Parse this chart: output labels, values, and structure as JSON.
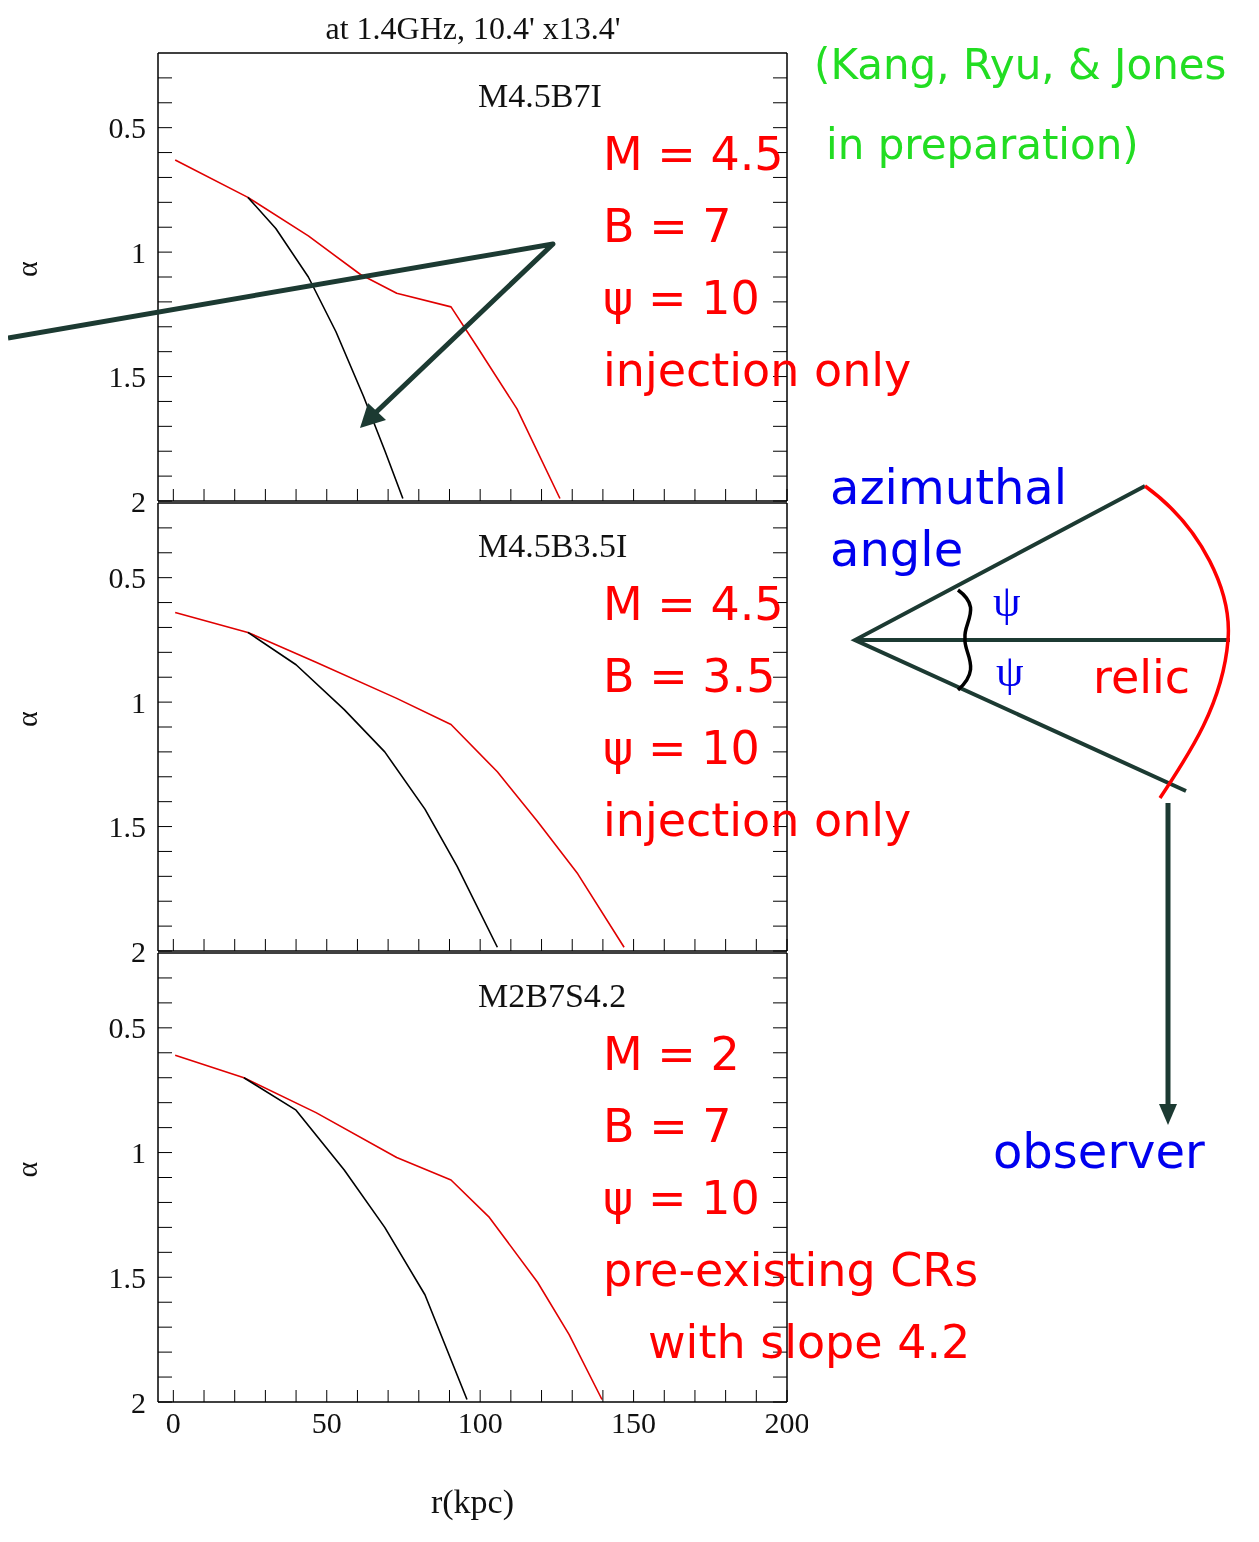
{
  "chart_data": [
    {
      "type": "line",
      "title": "at 1.4GHz, 10.4' x13.4'",
      "ylabel": "α",
      "xlim": [
        -5,
        200
      ],
      "ylim": [
        2,
        0.2
      ],
      "tick_labels": "y",
      "xticks": [
        0,
        {
          "value": 10,
          "label": null
        },
        {
          "value": 20,
          "label": null
        },
        {
          "value": 30,
          "label": null
        },
        {
          "value": 40,
          "label": null
        },
        50,
        {
          "value": 60,
          "label": null
        },
        {
          "value": 70,
          "label": null
        },
        {
          "value": 80,
          "label": null
        },
        {
          "value": 90,
          "label": null
        },
        100,
        {
          "value": 110,
          "label": null
        },
        {
          "value": 120,
          "label": null
        },
        {
          "value": 130,
          "label": null
        },
        {
          "value": 140,
          "label": null
        },
        150,
        {
          "value": 160,
          "label": null
        },
        {
          "value": 170,
          "label": null
        },
        {
          "value": 180,
          "label": null
        },
        {
          "value": 190,
          "label": null
        },
        200
      ],
      "yticks": [
        {
          "value": 0.3,
          "label": null
        },
        {
          "value": 0.4,
          "label": null
        },
        0.5,
        {
          "value": 0.6,
          "label": null
        },
        {
          "value": 0.7,
          "label": null
        },
        {
          "value": 0.8,
          "label": null
        },
        {
          "value": 0.9,
          "label": null
        },
        1,
        {
          "value": 1.1,
          "label": null
        },
        {
          "value": 1.2,
          "label": null
        },
        {
          "value": 1.3,
          "label": null
        },
        {
          "value": 1.4,
          "label": null
        },
        1.5,
        {
          "value": 1.6,
          "label": null
        },
        {
          "value": 1.7,
          "label": null
        },
        {
          "value": 1.8,
          "label": null
        },
        {
          "value": 1.9,
          "label": null
        },
        2
      ],
      "annotations": [
        "M4.5B7I",
        "M = 4.5",
        "B = 7",
        "ψ  = 10",
        "injection only"
      ],
      "series": [
        {
          "color": "#e00000",
          "x": [
            0.6,
            24.3,
            44,
            61,
            72.8,
            90.5,
            99,
            112,
            126
          ],
          "values": [
            0.63,
            0.78,
            0.935,
            1.09,
            1.165,
            1.22,
            1.38,
            1.63,
            1.99
          ]
        },
        {
          "color": "#000000",
          "x": [
            24.3,
            33.4,
            44,
            53,
            62,
            69,
            74.8
          ],
          "values": [
            0.78,
            0.905,
            1.1,
            1.32,
            1.58,
            1.8,
            1.99
          ]
        }
      ]
    },
    {
      "type": "line",
      "ylabel": "α",
      "xlim": [
        -5,
        200
      ],
      "ylim": [
        2,
        0.2
      ],
      "tick_labels": "y",
      "xticks": [
        0,
        {
          "value": 10,
          "label": null
        },
        {
          "value": 20,
          "label": null
        },
        {
          "value": 30,
          "label": null
        },
        {
          "value": 40,
          "label": null
        },
        50,
        {
          "value": 60,
          "label": null
        },
        {
          "value": 70,
          "label": null
        },
        {
          "value": 80,
          "label": null
        },
        {
          "value": 90,
          "label": null
        },
        100,
        {
          "value": 110,
          "label": null
        },
        {
          "value": 120,
          "label": null
        },
        {
          "value": 130,
          "label": null
        },
        {
          "value": 140,
          "label": null
        },
        150,
        {
          "value": 160,
          "label": null
        },
        {
          "value": 170,
          "label": null
        },
        {
          "value": 180,
          "label": null
        },
        {
          "value": 190,
          "label": null
        },
        200
      ],
      "yticks": [
        {
          "value": 0.3,
          "label": null
        },
        {
          "value": 0.4,
          "label": null
        },
        0.5,
        {
          "value": 0.6,
          "label": null
        },
        {
          "value": 0.7,
          "label": null
        },
        {
          "value": 0.8,
          "label": null
        },
        {
          "value": 0.9,
          "label": null
        },
        1,
        {
          "value": 1.1,
          "label": null
        },
        {
          "value": 1.2,
          "label": null
        },
        {
          "value": 1.3,
          "label": null
        },
        {
          "value": 1.4,
          "label": null
        },
        1.5,
        {
          "value": 1.6,
          "label": null
        },
        {
          "value": 1.7,
          "label": null
        },
        {
          "value": 1.8,
          "label": null
        },
        {
          "value": 1.9,
          "label": null
        },
        2
      ],
      "annotations": [
        "M4.5B3.5I",
        "M = 4.5",
        "B = 3.5",
        "ψ  = 10",
        "injection only"
      ],
      "series": [
        {
          "color": "#e00000",
          "x": [
            0.6,
            24.3,
            46.5,
            72.8,
            90.5,
            105.6,
            118.7,
            131.8,
            146.9
          ],
          "values": [
            0.64,
            0.72,
            0.84,
            0.985,
            1.09,
            1.28,
            1.48,
            1.69,
            1.985
          ]
        },
        {
          "color": "#000000",
          "x": [
            24.3,
            40,
            55.7,
            68.9,
            82,
            92.5,
            105.6
          ],
          "values": [
            0.72,
            0.85,
            1.03,
            1.2,
            1.43,
            1.66,
            1.985
          ]
        }
      ]
    },
    {
      "type": "line",
      "ylabel": "α",
      "xlabel": "r(kpc)",
      "xlim": [
        -5,
        200
      ],
      "ylim": [
        2,
        0.2
      ],
      "xticks": [
        0,
        {
          "value": 10,
          "label": null
        },
        {
          "value": 20,
          "label": null
        },
        {
          "value": 30,
          "label": null
        },
        {
          "value": 40,
          "label": null
        },
        50,
        {
          "value": 60,
          "label": null
        },
        {
          "value": 70,
          "label": null
        },
        {
          "value": 80,
          "label": null
        },
        {
          "value": 90,
          "label": null
        },
        100,
        {
          "value": 110,
          "label": null
        },
        {
          "value": 120,
          "label": null
        },
        {
          "value": 130,
          "label": null
        },
        {
          "value": 140,
          "label": null
        },
        150,
        {
          "value": 160,
          "label": null
        },
        {
          "value": 170,
          "label": null
        },
        {
          "value": 180,
          "label": null
        },
        {
          "value": 190,
          "label": null
        },
        200
      ],
      "yticks": [
        {
          "value": 0.3,
          "label": null
        },
        {
          "value": 0.4,
          "label": null
        },
        0.5,
        {
          "value": 0.6,
          "label": null
        },
        {
          "value": 0.7,
          "label": null
        },
        {
          "value": 0.8,
          "label": null
        },
        {
          "value": 0.9,
          "label": null
        },
        1,
        {
          "value": 1.1,
          "label": null
        },
        {
          "value": 1.2,
          "label": null
        },
        {
          "value": 1.3,
          "label": null
        },
        {
          "value": 1.4,
          "label": null
        },
        1.5,
        {
          "value": 1.6,
          "label": null
        },
        {
          "value": 1.7,
          "label": null
        },
        {
          "value": 1.8,
          "label": null
        },
        {
          "value": 1.9,
          "label": null
        },
        2
      ],
      "annotations": [
        "M2B7S4.2",
        "M = 2",
        "B = 7",
        "ψ  = 10",
        "pre-existing CRs",
        "with slope 4.2"
      ],
      "series": [
        {
          "color": "#e00000",
          "x": [
            0.6,
            23,
            46.5,
            72.8,
            90.5,
            103,
            118.7,
            129,
            139.7
          ],
          "values": [
            0.61,
            0.7,
            0.84,
            1.02,
            1.11,
            1.26,
            1.52,
            1.73,
            1.99
          ]
        },
        {
          "color": "#000000",
          "x": [
            23,
            40,
            55.7,
            68.9,
            82,
            95.7
          ],
          "values": [
            0.7,
            0.83,
            1.07,
            1.3,
            1.57,
            1.99
          ]
        }
      ]
    },
    {
      "type": "other",
      "annotations": [
        "(Kang, Ryu, & Jones",
        "in preparation)",
        "azimuthal angle",
        "ψ",
        "ψ",
        "relic",
        "observer"
      ]
    }
  ]
}
